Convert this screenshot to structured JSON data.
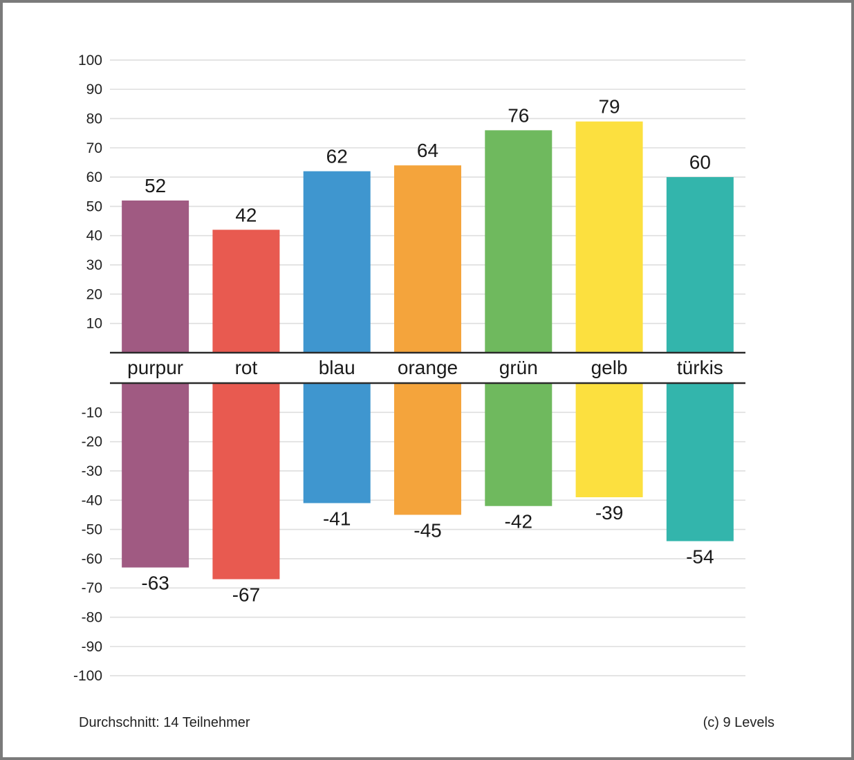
{
  "chart_data": {
    "type": "bar",
    "categories": [
      "purpur",
      "rot",
      "blau",
      "orange",
      "grün",
      "gelb",
      "türkis"
    ],
    "colors": [
      "#a05a82",
      "#e85a50",
      "#3f96cf",
      "#f4a43c",
      "#6fb95e",
      "#fce03f",
      "#33b5ac"
    ],
    "series": [
      {
        "values": [
          52,
          42,
          62,
          64,
          76,
          79,
          60
        ]
      },
      {
        "values": [
          -63,
          -67,
          -41,
          -45,
          -42,
          -39,
          -54
        ]
      }
    ],
    "upper_ticks": [
      10,
      20,
      30,
      40,
      50,
      60,
      70,
      80,
      90,
      100
    ],
    "lower_ticks": [
      -10,
      -20,
      -30,
      -40,
      -50,
      -60,
      -70,
      -80,
      -90,
      -100
    ],
    "ylim": [
      -100,
      100
    ],
    "grid": true,
    "legend": "none"
  },
  "footer": {
    "left": "Durchschnitt: 14 Teilnehmer",
    "right": "(c) 9 Levels"
  }
}
